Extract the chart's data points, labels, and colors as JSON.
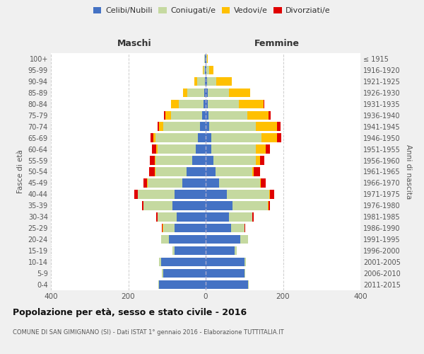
{
  "age_groups": [
    "0-4",
    "5-9",
    "10-14",
    "15-19",
    "20-24",
    "25-29",
    "30-34",
    "35-39",
    "40-44",
    "45-49",
    "50-54",
    "55-59",
    "60-64",
    "65-69",
    "70-74",
    "75-79",
    "80-84",
    "85-89",
    "90-94",
    "95-99",
    "100+"
  ],
  "birth_years": [
    "2011-2015",
    "2006-2010",
    "2001-2005",
    "1996-2000",
    "1991-1995",
    "1986-1990",
    "1981-1985",
    "1976-1980",
    "1971-1975",
    "1966-1970",
    "1961-1965",
    "1956-1960",
    "1951-1955",
    "1946-1950",
    "1941-1945",
    "1936-1940",
    "1931-1935",
    "1926-1930",
    "1921-1925",
    "1916-1920",
    "≤ 1915"
  ],
  "males": {
    "celibi": [
      120,
      110,
      115,
      80,
      95,
      80,
      75,
      85,
      80,
      60,
      50,
      35,
      25,
      20,
      15,
      10,
      5,
      3,
      2,
      1,
      1
    ],
    "coniugati": [
      2,
      3,
      5,
      5,
      20,
      30,
      50,
      75,
      95,
      90,
      80,
      95,
      100,
      110,
      95,
      80,
      65,
      45,
      20,
      5,
      2
    ],
    "vedovi": [
      0,
      0,
      0,
      0,
      0,
      1,
      0,
      0,
      1,
      1,
      1,
      2,
      3,
      5,
      10,
      15,
      20,
      10,
      8,
      2,
      0
    ],
    "divorziati": [
      0,
      0,
      0,
      0,
      0,
      2,
      3,
      5,
      8,
      10,
      15,
      12,
      10,
      8,
      5,
      2,
      0,
      0,
      0,
      0,
      0
    ]
  },
  "females": {
    "nubili": [
      110,
      100,
      100,
      75,
      90,
      65,
      60,
      70,
      55,
      35,
      25,
      20,
      15,
      15,
      10,
      8,
      5,
      5,
      3,
      1,
      1
    ],
    "coniugate": [
      2,
      3,
      5,
      5,
      20,
      35,
      60,
      90,
      110,
      105,
      95,
      110,
      115,
      130,
      120,
      100,
      80,
      55,
      25,
      8,
      2
    ],
    "vedove": [
      0,
      0,
      0,
      0,
      0,
      0,
      0,
      2,
      2,
      3,
      5,
      10,
      25,
      40,
      55,
      55,
      65,
      55,
      40,
      12,
      2
    ],
    "divorziate": [
      0,
      0,
      0,
      0,
      0,
      2,
      5,
      5,
      10,
      12,
      15,
      12,
      12,
      10,
      8,
      5,
      2,
      0,
      0,
      0,
      0
    ]
  },
  "color_celibi": "#4472c4",
  "color_coniugati": "#c5d9a0",
  "color_vedovi": "#ffc000",
  "color_divorziati": "#e00000",
  "title": "Popolazione per età, sesso e stato civile - 2016",
  "subtitle": "COMUNE DI SAN GIMIGNANO (SI) - Dati ISTAT 1° gennaio 2016 - Elaborazione TUTTITALIA.IT",
  "xlabel_left": "Maschi",
  "xlabel_right": "Femmine",
  "ylabel_left": "Fasce di età",
  "ylabel_right": "Anni di nascita",
  "xlim": 400,
  "bg_color": "#f0f0f0",
  "plot_bg": "#ffffff",
  "grid_color": "#cccccc"
}
